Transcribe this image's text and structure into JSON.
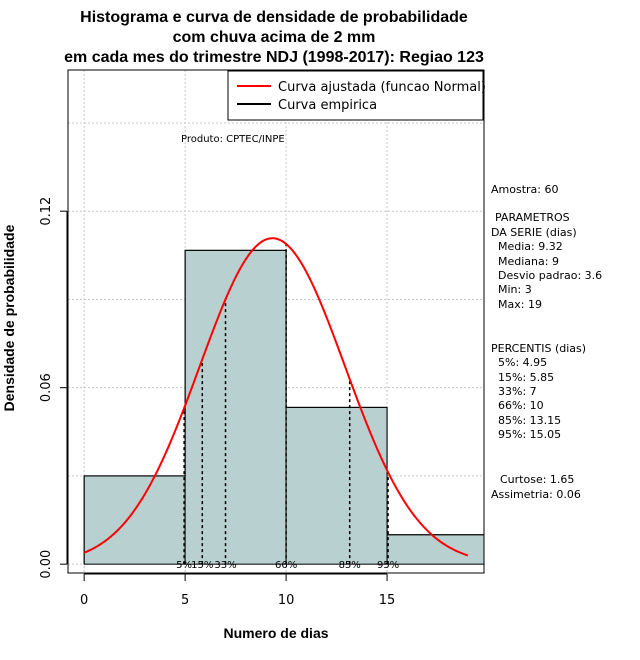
{
  "chart_data": {
    "type": "bar",
    "title_lines": [
      "Histograma e curva de densidade de probabilidade",
      "com chuva acima de 2 mm",
      "em cada mes do trimestre NDJ (1998-2017): Regiao 123"
    ],
    "xlabel": "Numero de dias",
    "ylabel": "Densidade de probabilidade",
    "xlim": [
      -0.8,
      19.8
    ],
    "ylim": [
      -0.003,
      0.168
    ],
    "x_ticks": [
      0,
      5,
      10,
      15
    ],
    "y_ticks": [
      0.0,
      0.06,
      0.12
    ],
    "y_tick_labels": [
      "0.00",
      "0.06",
      "0.12"
    ],
    "grid": true,
    "bins": [
      {
        "x0": 0,
        "x1": 5,
        "density": 0.03
      },
      {
        "x0": 5,
        "x1": 10,
        "density": 0.1067
      },
      {
        "x0": 10,
        "x1": 15,
        "density": 0.0533
      },
      {
        "x0": 15,
        "x1": 20,
        "density": 0.01
      }
    ],
    "fitted_curve": {
      "name": "Curva ajustada (funcao Normal)",
      "type": "normal",
      "mean": 9.32,
      "sd": 3.6,
      "x_range": [
        0,
        19
      ],
      "color": "#ff0000"
    },
    "empirical_curve": {
      "name": "Curva empirica",
      "color": "#000000"
    },
    "percentile_lines": [
      {
        "x": 4.95,
        "label": "5%"
      },
      {
        "x": 5.85,
        "label": "15%"
      },
      {
        "x": 7,
        "label": "33%"
      },
      {
        "x": 10,
        "label": "66%"
      },
      {
        "x": 13.15,
        "label": "85%"
      },
      {
        "x": 15.05,
        "label": "95%"
      }
    ],
    "legend_position": "top-right",
    "product_note": "Produto: CPTEC/INPE",
    "colors": {
      "bar_fill": "#b8d0d0",
      "fitted": "#ff0000",
      "grid": "#c8c8c8"
    }
  },
  "stats_panel": {
    "sample": "Amostra: 60",
    "params_title_1": "PARAMETROS",
    "params_title_2": "DA SERIE (dias)",
    "params": [
      "Media: 9.32",
      "Mediana: 9",
      "Desvio padrao: 3.6",
      "Min: 3",
      "Max: 19"
    ],
    "percentis_title": "PERCENTIS (dias)",
    "percentis": [
      "5%: 4.95",
      "15%: 5.85",
      "33%: 7",
      "66%: 10",
      "85%: 13.15",
      "95%: 15.05"
    ],
    "curtose": "Curtose: 1.65",
    "assimetria": "Assimetria: 0.06"
  }
}
